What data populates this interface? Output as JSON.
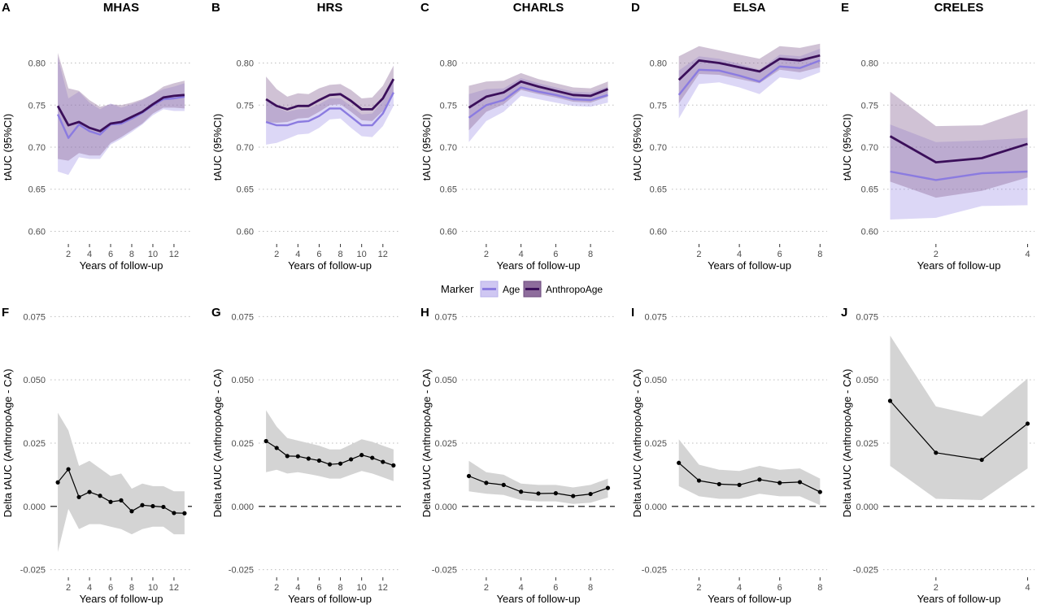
{
  "colors": {
    "age_line": "#8b7be0",
    "age_band": "#cfc7f2",
    "anthro_line": "#3b0f5a",
    "anthro_band": "#8e6d9c",
    "delta_line": "#000000",
    "delta_band": "#d4d4d4",
    "grid": "#bdbdbd"
  },
  "legend": {
    "title": "Marker",
    "items": [
      {
        "label": "Age",
        "color": "#8b7be0"
      },
      {
        "label": "AnthropoAge",
        "color": "#3b0f5a"
      }
    ]
  },
  "chart_data": [
    {
      "type": "line",
      "letter": "A",
      "title": "MHAS",
      "xlabel": "Years of follow-up",
      "ylabel": "tAUC (95%CI)",
      "xlim": [
        0.3,
        13.7
      ],
      "xticks": [
        2,
        4,
        6,
        8,
        10,
        12
      ],
      "ylim": [
        0.585,
        0.815
      ],
      "yticks": [
        0.6,
        0.65,
        0.7,
        0.75,
        0.8
      ],
      "ytick_labels": [
        "0.60",
        "0.65",
        "0.70",
        "0.75",
        "0.80"
      ],
      "series": [
        {
          "name": "Age",
          "x": [
            1,
            2,
            3,
            4,
            5,
            6,
            7,
            8,
            9,
            10,
            11,
            12,
            13
          ],
          "y": [
            0.739,
            0.711,
            0.727,
            0.719,
            0.715,
            0.727,
            0.728,
            0.734,
            0.741,
            0.75,
            0.757,
            0.758,
            0.76
          ],
          "lower": [
            0.671,
            0.667,
            0.688,
            0.686,
            0.686,
            0.703,
            0.71,
            0.718,
            0.727,
            0.738,
            0.745,
            0.743,
            0.743
          ],
          "upper": [
            0.807,
            0.758,
            0.766,
            0.753,
            0.745,
            0.752,
            0.747,
            0.751,
            0.756,
            0.763,
            0.769,
            0.772,
            0.776
          ]
        },
        {
          "name": "AnthropoAge",
          "x": [
            1,
            2,
            3,
            4,
            5,
            6,
            7,
            8,
            9,
            10,
            11,
            12,
            13
          ],
          "y": [
            0.749,
            0.726,
            0.73,
            0.723,
            0.719,
            0.728,
            0.73,
            0.736,
            0.742,
            0.751,
            0.759,
            0.761,
            0.762
          ],
          "lower": [
            0.686,
            0.684,
            0.693,
            0.69,
            0.69,
            0.705,
            0.712,
            0.72,
            0.728,
            0.74,
            0.747,
            0.747,
            0.746
          ],
          "upper": [
            0.812,
            0.77,
            0.767,
            0.756,
            0.748,
            0.751,
            0.75,
            0.753,
            0.757,
            0.763,
            0.772,
            0.776,
            0.779
          ]
        }
      ]
    },
    {
      "type": "line",
      "letter": "B",
      "title": "HRS",
      "xlabel": "Years of follow-up",
      "ylabel": "tAUC (95%CI)",
      "xlim": [
        0.3,
        13.7
      ],
      "xticks": [
        2,
        4,
        6,
        8,
        10,
        12
      ],
      "ylim": [
        0.585,
        0.815
      ],
      "yticks": [
        0.6,
        0.65,
        0.7,
        0.75,
        0.8
      ],
      "ytick_labels": [
        "0.60",
        "0.65",
        "0.70",
        "0.75",
        "0.80"
      ],
      "series": [
        {
          "name": "Age",
          "x": [
            1,
            2,
            3,
            4,
            5,
            6,
            7,
            8,
            9,
            10,
            11,
            12,
            13
          ],
          "y": [
            0.73,
            0.726,
            0.726,
            0.73,
            0.731,
            0.737,
            0.746,
            0.746,
            0.736,
            0.726,
            0.726,
            0.74,
            0.765
          ],
          "lower": [
            0.703,
            0.705,
            0.71,
            0.715,
            0.716,
            0.723,
            0.733,
            0.734,
            0.723,
            0.713,
            0.712,
            0.725,
            0.749
          ],
          "upper": [
            0.756,
            0.747,
            0.742,
            0.745,
            0.746,
            0.751,
            0.758,
            0.758,
            0.749,
            0.739,
            0.74,
            0.755,
            0.781
          ]
        },
        {
          "name": "AnthropoAge",
          "x": [
            1,
            2,
            3,
            4,
            5,
            6,
            7,
            8,
            9,
            10,
            11,
            12,
            13
          ],
          "y": [
            0.757,
            0.749,
            0.745,
            0.749,
            0.749,
            0.756,
            0.762,
            0.763,
            0.755,
            0.745,
            0.745,
            0.758,
            0.781
          ],
          "lower": [
            0.73,
            0.729,
            0.73,
            0.734,
            0.735,
            0.742,
            0.75,
            0.751,
            0.742,
            0.732,
            0.731,
            0.743,
            0.765
          ],
          "upper": [
            0.784,
            0.769,
            0.76,
            0.764,
            0.763,
            0.77,
            0.774,
            0.775,
            0.768,
            0.758,
            0.759,
            0.773,
            0.797
          ]
        }
      ]
    },
    {
      "type": "line",
      "letter": "C",
      "title": "CHARLS",
      "xlabel": "Years of follow-up",
      "ylabel": "tAUC (95%CI)",
      "xlim": [
        0.6,
        9.4
      ],
      "xticks": [
        2,
        4,
        6,
        8
      ],
      "ylim": [
        0.585,
        0.815
      ],
      "yticks": [
        0.6,
        0.65,
        0.7,
        0.75,
        0.8
      ],
      "ytick_labels": [
        "0.60",
        "0.65",
        "0.70",
        "0.75",
        "0.80"
      ],
      "series": [
        {
          "name": "Age",
          "x": [
            1,
            2,
            3,
            4,
            5,
            6,
            7,
            8,
            9
          ],
          "y": [
            0.735,
            0.75,
            0.756,
            0.771,
            0.766,
            0.762,
            0.757,
            0.756,
            0.762
          ],
          "lower": [
            0.706,
            0.731,
            0.742,
            0.761,
            0.757,
            0.753,
            0.749,
            0.748,
            0.753
          ],
          "upper": [
            0.763,
            0.769,
            0.77,
            0.782,
            0.776,
            0.771,
            0.766,
            0.765,
            0.772
          ]
        },
        {
          "name": "AnthropoAge",
          "x": [
            1,
            2,
            3,
            4,
            5,
            6,
            7,
            8,
            9
          ],
          "y": [
            0.747,
            0.76,
            0.765,
            0.778,
            0.772,
            0.767,
            0.762,
            0.761,
            0.769
          ],
          "lower": [
            0.72,
            0.742,
            0.751,
            0.768,
            0.763,
            0.759,
            0.754,
            0.753,
            0.76
          ],
          "upper": [
            0.773,
            0.778,
            0.779,
            0.788,
            0.781,
            0.776,
            0.771,
            0.77,
            0.778
          ]
        }
      ]
    },
    {
      "type": "line",
      "letter": "D",
      "title": "ELSA",
      "xlabel": "Years of follow-up",
      "ylabel": "tAUC (95%CI)",
      "xlim": [
        0.65,
        8.35
      ],
      "xticks": [
        2,
        4,
        6,
        8
      ],
      "ylim": [
        0.585,
        0.815
      ],
      "yticks": [
        0.6,
        0.65,
        0.7,
        0.75,
        0.8
      ],
      "ytick_labels": [
        "0.60",
        "0.65",
        "0.70",
        "0.75",
        "0.80"
      ],
      "series": [
        {
          "name": "Age",
          "x": [
            1,
            2,
            3,
            4,
            5,
            6,
            7,
            8
          ],
          "y": [
            0.762,
            0.792,
            0.791,
            0.785,
            0.778,
            0.796,
            0.794,
            0.803
          ],
          "lower": [
            0.734,
            0.775,
            0.777,
            0.771,
            0.763,
            0.783,
            0.78,
            0.789
          ],
          "upper": [
            0.791,
            0.808,
            0.805,
            0.799,
            0.792,
            0.81,
            0.808,
            0.817
          ]
        },
        {
          "name": "AnthropoAge",
          "x": [
            1,
            2,
            3,
            4,
            5,
            6,
            7,
            8
          ],
          "y": [
            0.78,
            0.803,
            0.8,
            0.795,
            0.79,
            0.805,
            0.803,
            0.809
          ],
          "lower": [
            0.752,
            0.787,
            0.786,
            0.781,
            0.776,
            0.792,
            0.789,
            0.795
          ],
          "upper": [
            0.808,
            0.82,
            0.815,
            0.81,
            0.805,
            0.82,
            0.818,
            0.823
          ]
        }
      ]
    },
    {
      "type": "line",
      "letter": "E",
      "title": "CRELES",
      "xlabel": "Years of follow-up",
      "ylabel": "tAUC (95%CI)",
      "xlim": [
        0.85,
        4.15
      ],
      "xticks": [
        2,
        4
      ],
      "ylim": [
        0.585,
        0.815
      ],
      "yticks": [
        0.6,
        0.65,
        0.7,
        0.75,
        0.8
      ],
      "ytick_labels": [
        "0.60",
        "0.65",
        "0.70",
        "0.75",
        "0.80"
      ],
      "series": [
        {
          "name": "Age",
          "x": [
            1,
            2,
            3,
            4
          ],
          "y": [
            0.671,
            0.661,
            0.669,
            0.671
          ],
          "lower": [
            0.614,
            0.616,
            0.63,
            0.631
          ],
          "upper": [
            0.727,
            0.706,
            0.708,
            0.711
          ]
        },
        {
          "name": "AnthropoAge",
          "x": [
            1,
            2,
            3,
            4
          ],
          "y": [
            0.713,
            0.682,
            0.687,
            0.704
          ],
          "lower": [
            0.659,
            0.64,
            0.648,
            0.664
          ],
          "upper": [
            0.766,
            0.725,
            0.726,
            0.745
          ]
        }
      ]
    },
    {
      "type": "line",
      "letter": "F",
      "xlabel": "Years of follow-up",
      "ylabel": "Delta tAUC (AnthropoAge - CA)",
      "xlim": [
        0.3,
        13.7
      ],
      "xticks": [
        2,
        4,
        6,
        8,
        10,
        12
      ],
      "ylim": [
        -0.028,
        0.078
      ],
      "yticks": [
        -0.025,
        0,
        0.025,
        0.05,
        0.075
      ],
      "ytick_labels": [
        "-0.025",
        "0.000",
        "0.025",
        "0.050",
        "0.075"
      ],
      "series": [
        {
          "x": [
            1,
            2,
            3,
            4,
            5,
            6,
            7,
            8,
            9,
            10,
            11,
            12,
            13
          ],
          "y": [
            0.0095,
            0.0147,
            0.0037,
            0.0057,
            0.0042,
            0.0018,
            0.0024,
            -0.0019,
            0.0005,
            0.0001,
            -0.0002,
            -0.0026,
            -0.0027
          ],
          "lower": [
            -0.018,
            -0.001,
            -0.009,
            -0.007,
            -0.007,
            -0.008,
            -0.009,
            -0.011,
            -0.009,
            -0.008,
            -0.008,
            -0.011,
            -0.011
          ],
          "upper": [
            0.037,
            0.03,
            0.016,
            0.018,
            0.015,
            0.012,
            0.013,
            0.007,
            0.009,
            0.008,
            0.008,
            0.006,
            0.006
          ]
        }
      ]
    },
    {
      "type": "line",
      "letter": "G",
      "xlabel": "Years of follow-up",
      "ylabel": "Delta tAUC (AnthropoAge - CA)",
      "xlim": [
        0.3,
        13.7
      ],
      "xticks": [
        2,
        4,
        6,
        8,
        10,
        12
      ],
      "ylim": [
        -0.028,
        0.078
      ],
      "yticks": [
        -0.025,
        0,
        0.025,
        0.05,
        0.075
      ],
      "ytick_labels": [
        "-0.025",
        "0.000",
        "0.025",
        "0.050",
        "0.075"
      ],
      "series": [
        {
          "x": [
            1,
            2,
            3,
            4,
            5,
            6,
            7,
            8,
            9,
            10,
            11,
            12,
            13
          ],
          "y": [
            0.0258,
            0.0231,
            0.0199,
            0.0198,
            0.0189,
            0.0181,
            0.0166,
            0.0169,
            0.0186,
            0.0203,
            0.0192,
            0.0176,
            0.0162
          ],
          "lower": [
            0.0135,
            0.0145,
            0.013,
            0.0135,
            0.0128,
            0.012,
            0.011,
            0.011,
            0.0125,
            0.014,
            0.013,
            0.0115,
            0.01
          ],
          "upper": [
            0.038,
            0.0315,
            0.027,
            0.026,
            0.025,
            0.024,
            0.0225,
            0.0225,
            0.0245,
            0.0265,
            0.0255,
            0.024,
            0.0225
          ]
        }
      ]
    },
    {
      "type": "line",
      "letter": "H",
      "xlabel": "Years of follow-up",
      "ylabel": "Delta tAUC (AnthropoAge - CA)",
      "xlim": [
        0.6,
        9.4
      ],
      "xticks": [
        2,
        4,
        6,
        8
      ],
      "ylim": [
        -0.028,
        0.078
      ],
      "yticks": [
        -0.025,
        0,
        0.025,
        0.05,
        0.075
      ],
      "ytick_labels": [
        "-0.025",
        "0.000",
        "0.025",
        "0.050",
        "0.075"
      ],
      "series": [
        {
          "x": [
            1,
            2,
            3,
            4,
            5,
            6,
            7,
            8,
            9
          ],
          "y": [
            0.012,
            0.0093,
            0.0085,
            0.0058,
            0.0051,
            0.0052,
            0.0041,
            0.0049,
            0.0073
          ],
          "lower": [
            0.006,
            0.005,
            0.0045,
            0.0025,
            0.002,
            0.002,
            0.001,
            0.0015,
            0.0035
          ],
          "upper": [
            0.018,
            0.0135,
            0.0125,
            0.009,
            0.0085,
            0.0085,
            0.0075,
            0.0085,
            0.011
          ]
        }
      ]
    },
    {
      "type": "line",
      "letter": "I",
      "xlabel": "Years of follow-up",
      "ylabel": "Delta tAUC (AnthropoAge - CA)",
      "xlim": [
        0.65,
        8.35
      ],
      "xticks": [
        2,
        4,
        6,
        8
      ],
      "ylim": [
        -0.028,
        0.078
      ],
      "yticks": [
        -0.025,
        0,
        0.025,
        0.05,
        0.075
      ],
      "ytick_labels": [
        "-0.025",
        "0.000",
        "0.025",
        "0.050",
        "0.075"
      ],
      "series": [
        {
          "x": [
            1,
            2,
            3,
            4,
            5,
            6,
            7,
            8
          ],
          "y": [
            0.0172,
            0.0102,
            0.0088,
            0.0085,
            0.0106,
            0.0093,
            0.0096,
            0.0057
          ],
          "lower": [
            0.008,
            0.004,
            0.003,
            0.003,
            0.005,
            0.004,
            0.004,
            0.0005
          ],
          "upper": [
            0.0265,
            0.0165,
            0.0145,
            0.014,
            0.016,
            0.0145,
            0.015,
            0.011
          ]
        }
      ]
    },
    {
      "type": "line",
      "letter": "J",
      "xlabel": "Years of follow-up",
      "ylabel": "Delta tAUC (AnthropoAge - CA)",
      "xlim": [
        0.85,
        4.15
      ],
      "xticks": [
        2,
        4
      ],
      "ylim": [
        -0.028,
        0.078
      ],
      "yticks": [
        -0.025,
        0,
        0.025,
        0.05,
        0.075
      ],
      "ytick_labels": [
        "-0.025",
        "0.000",
        "0.025",
        "0.050",
        "0.075"
      ],
      "series": [
        {
          "x": [
            1,
            2,
            3,
            4
          ],
          "y": [
            0.0417,
            0.0212,
            0.0184,
            0.0327
          ],
          "lower": [
            0.016,
            0.003,
            0.0025,
            0.015
          ],
          "upper": [
            0.0675,
            0.0395,
            0.0355,
            0.0505
          ]
        }
      ]
    }
  ]
}
